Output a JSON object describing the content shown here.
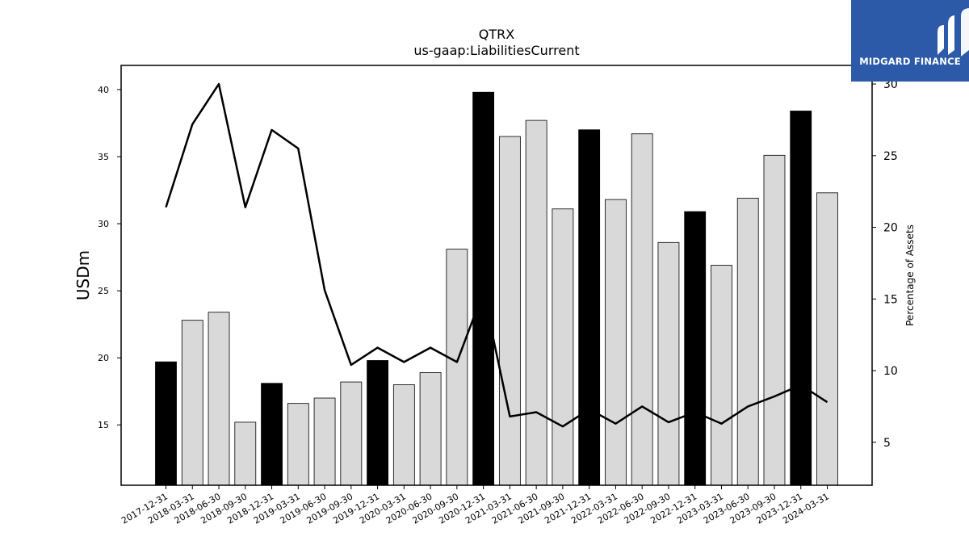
{
  "brand": {
    "name": "MIDGARD FINANCE",
    "bg_color": "#2c5aa8"
  },
  "chart_data": {
    "type": "bar",
    "title": "QTRX",
    "subtitle": "us-gaap:LiabilitiesCurrent",
    "ylabel": "USDm",
    "y2label": "Percentage of Assets",
    "ylim": [
      10.5,
      41.8
    ],
    "y2lim": [
      2.0,
      31.3
    ],
    "yticks": [
      15,
      20,
      25,
      30,
      35,
      40
    ],
    "y2ticks": [
      5,
      10,
      15,
      20,
      25,
      30
    ],
    "categories": [
      "2017-12-31",
      "2018-03-31",
      "2018-06-30",
      "2018-09-30",
      "2018-12-31",
      "2019-03-31",
      "2019-06-30",
      "2019-09-30",
      "2019-12-31",
      "2020-03-31",
      "2020-06-30",
      "2020-09-30",
      "2020-12-31",
      "2021-03-31",
      "2021-06-30",
      "2021-09-30",
      "2021-12-31",
      "2022-03-31",
      "2022-06-30",
      "2022-09-30",
      "2022-12-31",
      "2023-03-31",
      "2023-06-30",
      "2023-09-30",
      "2023-12-31",
      "2024-03-31"
    ],
    "series": [
      {
        "type": "bar",
        "axis": "left",
        "values": [
          19.7,
          22.8,
          23.4,
          15.2,
          18.1,
          16.6,
          17.0,
          18.2,
          19.8,
          18.0,
          18.9,
          28.1,
          39.8,
          36.5,
          37.7,
          31.1,
          37.0,
          31.8,
          36.7,
          28.6,
          30.9,
          26.9,
          31.9,
          35.1,
          38.4,
          32.3
        ]
      },
      {
        "type": "line",
        "axis": "right",
        "values": [
          21.4,
          27.2,
          30.0,
          21.4,
          26.8,
          25.5,
          15.6,
          10.4,
          11.6,
          10.6,
          11.6,
          10.6,
          15.5,
          6.8,
          7.1,
          6.1,
          7.3,
          6.3,
          7.5,
          6.4,
          7.1,
          6.3,
          7.5,
          8.2,
          9.0,
          7.8
        ]
      }
    ],
    "bar_colors": {
      "year_end": "#000000",
      "other": "#d9d9d9",
      "edge": "#000000"
    },
    "line_color": "#000000",
    "grid": false
  }
}
